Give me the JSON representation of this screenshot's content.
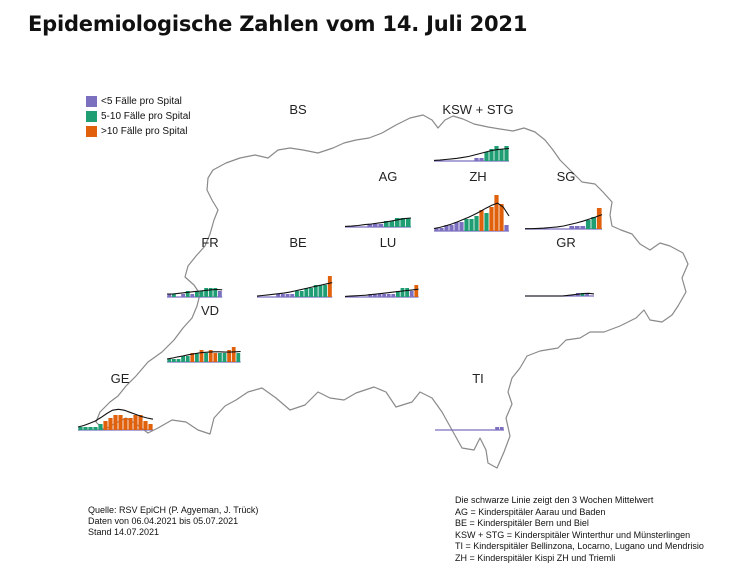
{
  "title": "Epidemiologische Zahlen vom 14. Juli 2021",
  "legend": [
    {
      "label": "<5 Fälle pro Spital",
      "color": "#7b6fc0"
    },
    {
      "label": "5-10 Fälle pro Spital",
      "color": "#1f9e74"
    },
    {
      "label": ">10 Fälle pro Spital",
      "color": "#e0600c"
    }
  ],
  "source": {
    "line1": "Quelle: RSV EpiCH (P. Agyeman, J. Trück)",
    "line2": "Daten von 06.04.2021 bis 05.07.2021",
    "line3": "Stand 14.07.2021"
  },
  "notes": [
    "Die schwarze Linie zeigt den 3 Wochen Mittelwert",
    "AG = Kinderspitäler Aarau und Baden",
    "BE = Kinderspitäler Bern und Biel",
    "KSW + STG = Kinderspitäler Winterthur und Münsterlingen",
    "TI = Kinderspitäler Bellinzona, Locarno, Lugano und Mendrisio",
    "ZH = Kinderspitäler Kispi ZH und Triemli"
  ],
  "chart_data": [
    {
      "type": "bar",
      "region": "BS",
      "values": [],
      "categories": []
    },
    {
      "type": "bar",
      "region": "KSW + STG",
      "values": [
        0,
        0,
        0,
        0,
        0,
        0,
        0,
        0,
        1,
        1,
        3,
        4,
        5,
        4,
        5
      ],
      "categories": [
        "v",
        "v",
        "v",
        "v",
        "v",
        "v",
        "v",
        "v",
        "v",
        "v",
        "g",
        "g",
        "g",
        "g",
        "g"
      ],
      "trend": [
        0.2,
        0.3,
        0.5,
        0.7,
        0.9,
        1.2,
        1.5,
        2,
        2.5,
        3,
        3.5,
        3.8,
        4,
        4.2
      ]
    },
    {
      "type": "bar",
      "region": "AG",
      "values": [
        0,
        0,
        0,
        0,
        1,
        1,
        1,
        2,
        2,
        3,
        3,
        3
      ],
      "categories": [
        "v",
        "v",
        "v",
        "v",
        "v",
        "v",
        "v",
        "g",
        "g",
        "g",
        "g",
        "g"
      ],
      "trend": [
        0.2,
        0.3,
        0.5,
        0.8,
        1,
        1.3,
        1.6,
        2,
        2.4,
        2.8,
        3
      ]
    },
    {
      "type": "bar",
      "region": "ZH",
      "values": [
        1,
        1,
        2,
        2,
        3,
        3,
        4,
        4,
        5,
        7,
        6,
        8,
        12,
        9,
        2
      ],
      "categories": [
        "v",
        "v",
        "v",
        "v",
        "v",
        "v",
        "g",
        "g",
        "g",
        "o",
        "g",
        "o",
        "o",
        "o",
        "v"
      ],
      "trend": [
        0.8,
        1.2,
        1.7,
        2.3,
        3,
        3.8,
        4.6,
        5.5,
        6.5,
        7.6,
        8.6,
        9.3,
        8,
        5
      ]
    },
    {
      "type": "bar",
      "region": "SG",
      "values": [
        0,
        0,
        0,
        0,
        0,
        0,
        0,
        0,
        1,
        1,
        1,
        3,
        4,
        7
      ],
      "categories": [
        "v",
        "v",
        "v",
        "v",
        "v",
        "v",
        "v",
        "v",
        "v",
        "v",
        "v",
        "g",
        "g",
        "o"
      ],
      "trend": [
        0.1,
        0.1,
        0.2,
        0.3,
        0.5,
        0.7,
        1,
        1.5,
        2,
        2.6,
        3.3,
        4,
        4.8
      ]
    },
    {
      "type": "bar",
      "region": "FR",
      "values": [
        1,
        1,
        0,
        1,
        2,
        1,
        2,
        2,
        3,
        3,
        3,
        2
      ],
      "categories": [
        "v",
        "g",
        "v",
        "v",
        "g",
        "v",
        "g",
        "g",
        "g",
        "g",
        "g",
        "v"
      ],
      "trend": [
        1,
        1,
        1.2,
        1.4,
        1.6,
        1.8,
        2,
        2.2,
        2.4,
        2.5,
        2.4
      ]
    },
    {
      "type": "bar",
      "region": "BE",
      "values": [
        0,
        0,
        0,
        0,
        1,
        1,
        1,
        1,
        2,
        2,
        3,
        3,
        4,
        4,
        4,
        7
      ],
      "categories": [
        "v",
        "v",
        "v",
        "v",
        "v",
        "v",
        "v",
        "v",
        "g",
        "g",
        "g",
        "g",
        "g",
        "g",
        "g",
        "o"
      ],
      "trend": [
        0.3,
        0.5,
        0.7,
        0.9,
        1.1,
        1.3,
        1.6,
        2,
        2.4,
        2.8,
        3.2,
        3.6,
        4,
        4.4,
        4.8
      ]
    },
    {
      "type": "bar",
      "region": "LU",
      "values": [
        0,
        0,
        0,
        0,
        0,
        1,
        1,
        1,
        1,
        1,
        1,
        2,
        3,
        3,
        2,
        4
      ],
      "categories": [
        "v",
        "v",
        "v",
        "v",
        "v",
        "v",
        "v",
        "v",
        "v",
        "v",
        "v",
        "g",
        "g",
        "g",
        "v",
        "o"
      ],
      "trend": [
        0.2,
        0.3,
        0.4,
        0.5,
        0.6,
        0.8,
        1,
        1.2,
        1.4,
        1.6,
        1.8,
        2,
        2.2,
        2.4,
        2.6
      ]
    },
    {
      "type": "bar",
      "region": "GR",
      "values": [
        0,
        0,
        0,
        0,
        0,
        0,
        0,
        0,
        0,
        0,
        0,
        1,
        1,
        1,
        0
      ],
      "categories": [
        "v",
        "v",
        "v",
        "v",
        "v",
        "v",
        "v",
        "v",
        "v",
        "v",
        "v",
        "v",
        "g",
        "v",
        "v"
      ],
      "trend": [
        0,
        0,
        0,
        0,
        0,
        0,
        0,
        0,
        0.2,
        0.4,
        0.6,
        0.8,
        0.9,
        0.7
      ]
    },
    {
      "type": "bar",
      "region": "VD",
      "values": [
        1,
        1,
        1,
        2,
        2,
        3,
        3,
        4,
        3,
        4,
        3,
        3,
        3,
        4,
        5,
        3
      ],
      "categories": [
        "g",
        "g",
        "g",
        "g",
        "g",
        "o",
        "g",
        "o",
        "g",
        "o",
        "o",
        "g",
        "g",
        "o",
        "o",
        "g"
      ],
      "trend": [
        1,
        1.3,
        1.7,
        2,
        2.4,
        2.7,
        3,
        3.2,
        3.3,
        3.4,
        3.4,
        3.3,
        3.3,
        3.4,
        3.5
      ]
    },
    {
      "type": "bar",
      "region": "GE",
      "values": [
        1,
        1,
        1,
        1,
        2,
        3,
        4,
        5,
        5,
        4,
        4,
        5,
        5,
        3,
        2
      ],
      "categories": [
        "g",
        "g",
        "g",
        "g",
        "g",
        "o",
        "o",
        "o",
        "o",
        "o",
        "o",
        "o",
        "o",
        "o",
        "o"
      ],
      "trend": [
        1,
        1.5,
        2.2,
        3,
        4.2,
        5.5,
        6.6,
        6.9,
        6.6,
        5.9,
        5.2,
        4.5,
        4,
        3.6
      ]
    },
    {
      "type": "bar",
      "region": "TI",
      "values": [
        0,
        0,
        0,
        0,
        0,
        0,
        0,
        0,
        0,
        0,
        0,
        0,
        0,
        1,
        1
      ],
      "categories": [
        "v",
        "v",
        "v",
        "v",
        "v",
        "v",
        "v",
        "v",
        "v",
        "v",
        "v",
        "v",
        "v",
        "v",
        "v"
      ],
      "trend": []
    }
  ]
}
